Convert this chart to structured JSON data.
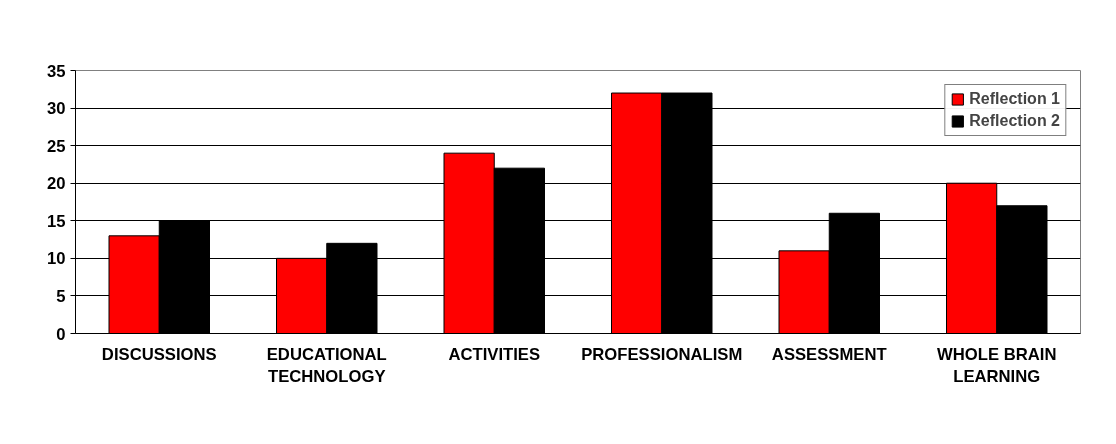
{
  "chart_data": {
    "type": "bar",
    "categories": [
      "DISCUSSIONS",
      "EDUCATIONAL TECHNOLOGY",
      "ACTIVITIES",
      "PROFESSIONALISM",
      "ASSESSMENT",
      "WHOLE BRAIN LEARNING"
    ],
    "series": [
      {
        "name": "Reflection 1",
        "color": "#ff0000",
        "values": [
          13,
          10,
          24,
          32,
          11,
          20
        ]
      },
      {
        "name": "Reflection 2",
        "color": "#000000",
        "values": [
          15,
          12,
          22,
          32,
          16,
          17
        ]
      }
    ],
    "ylim": [
      0,
      35
    ],
    "yticks": [
      0,
      5,
      10,
      15,
      20,
      25,
      30,
      35
    ],
    "grid": "y",
    "legend": "top right"
  }
}
